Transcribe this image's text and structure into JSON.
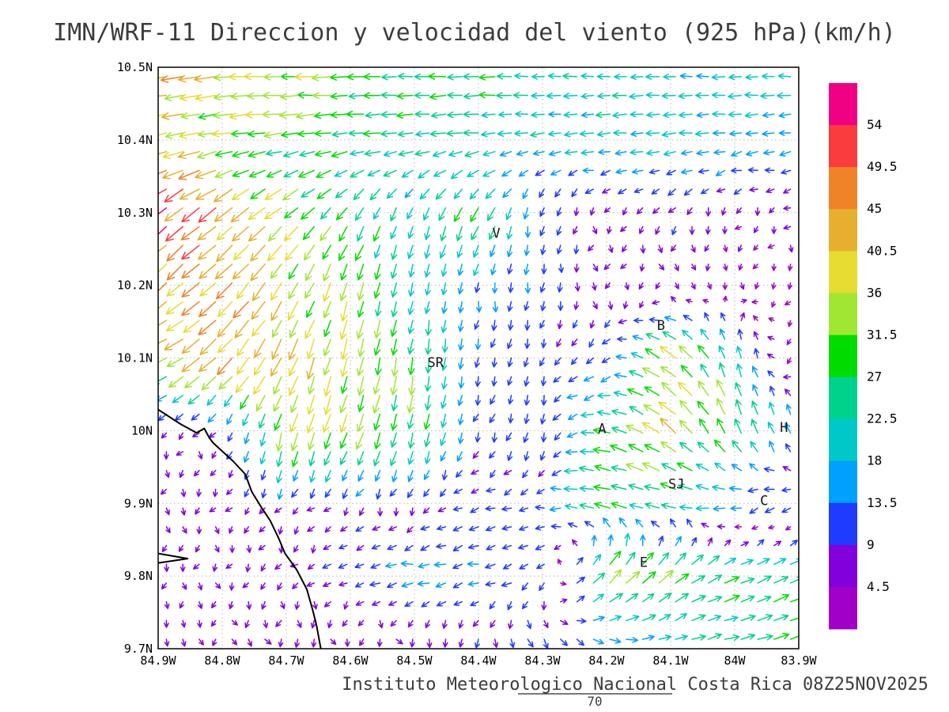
{
  "page": {
    "title": "IMN/WRF-11 Direccion y velocidad del viento (925 hPa)(km/h)",
    "footer": "Instituto Meteorologico Nacional Costa Rica 08Z25NOV2025"
  },
  "chart_data": {
    "type": "vector_field",
    "title": "IMN/WRF-11 Direccion y velocidad del viento (925 hPa)(km/h)",
    "units": "km/h",
    "x_axis": {
      "ticks": [
        "84.9W",
        "84.8W",
        "84.7W",
        "84.6W",
        "84.5W",
        "84.4W",
        "84.3W",
        "84.2W",
        "84.1W",
        "84W",
        "83.9W"
      ],
      "range_deg_lon": [
        -84.9,
        -83.9
      ],
      "grid_step_deg": 0.1
    },
    "y_axis": {
      "ticks": [
        "10.5N",
        "10.4N",
        "10.3N",
        "10.2N",
        "10.1N",
        "10N",
        "9.9N",
        "9.8N",
        "9.7N"
      ],
      "range_deg_lat": [
        9.7,
        10.5
      ],
      "grid_step_deg": 0.1
    },
    "grid_style": "dashed",
    "colorbar": {
      "unit": "km/h",
      "levels": [
        4.5,
        9,
        13.5,
        18,
        22.5,
        27,
        31.5,
        36,
        40.5,
        45,
        49.5,
        54
      ],
      "labels_top_to_bottom": [
        "54",
        "49.5",
        "45",
        "40.5",
        "36",
        "31.5",
        "27",
        "22.5",
        "18",
        "13.5",
        "9",
        "4.5"
      ],
      "colors_ascending": [
        "#a000c8",
        "#8200dc",
        "#1e3cff",
        "#00a0ff",
        "#00c8c8",
        "#00d28c",
        "#00dc00",
        "#a0e632",
        "#e6dc32",
        "#e6af2d",
        "#f08228",
        "#fa3c3c",
        "#f00082"
      ]
    },
    "wind_grid": {
      "comment_units": "u,v wind components in km/h on 0.1 deg grid, rows ordered north to south",
      "lons": [
        -84.9,
        -84.8,
        -84.7,
        -84.6,
        -84.5,
        -84.4,
        -84.3,
        -84.2,
        -84.1,
        -84.0,
        -83.9
      ],
      "lats": [
        10.5,
        10.4,
        10.3,
        10.2,
        10.1,
        10.0,
        9.9,
        9.8,
        9.7
      ],
      "u": [
        [
          -42,
          -38,
          -36,
          -30,
          -28,
          -28,
          -22,
          -20,
          -20,
          -20,
          -20
        ],
        [
          -38,
          -34,
          -30,
          -28,
          -24,
          -22,
          -20,
          -20,
          -20,
          -18,
          -18
        ],
        [
          -42,
          -36,
          -26,
          -14,
          -6,
          -12,
          -2,
          -2,
          -6,
          -4,
          -3
        ],
        [
          -30,
          -32,
          -20,
          -10,
          -4,
          -2,
          0,
          -2,
          2,
          3,
          -3
        ],
        [
          -34,
          -30,
          -18,
          -8,
          -4,
          -2,
          -4,
          -8,
          -30,
          -5,
          -4
        ],
        [
          -2,
          -3,
          -8,
          -12,
          -6,
          -4,
          -2,
          -26,
          -30,
          -12,
          -6
        ],
        [
          -1,
          -2,
          -3,
          -5,
          -4,
          -9,
          -11,
          -28,
          -26,
          -18,
          -10
        ],
        [
          0,
          -1,
          -2,
          -10,
          -17,
          -15,
          -8,
          24,
          26,
          24,
          22
        ],
        [
          1,
          2,
          1,
          2,
          5,
          2,
          8,
          14,
          16,
          24,
          28
        ]
      ],
      "v": [
        [
          -4,
          -2,
          0,
          0,
          0,
          0,
          0,
          0,
          0,
          0,
          0
        ],
        [
          -8,
          -6,
          -4,
          -3,
          -2,
          -2,
          -2,
          -2,
          -2,
          -2,
          -2
        ],
        [
          -34,
          -28,
          -22,
          -22,
          -20,
          -24,
          -12,
          -5,
          -8,
          -4,
          -4
        ],
        [
          -28,
          -30,
          -32,
          -32,
          -20,
          -14,
          -12,
          -6,
          -5,
          -4,
          -3
        ],
        [
          -14,
          -28,
          -38,
          -34,
          -30,
          -12,
          -9,
          -8,
          20,
          22,
          -6
        ],
        [
          -6,
          -7,
          -32,
          -30,
          -28,
          -10,
          -12,
          4,
          25,
          30,
          14
        ],
        [
          -6,
          -5,
          -7,
          -6,
          -6,
          -3,
          -2,
          6,
          4,
          -4,
          -8
        ],
        [
          -6,
          -6,
          -7,
          -4,
          -2,
          -3,
          -8,
          26,
          20,
          10,
          12
        ],
        [
          -5,
          -5,
          -8,
          -6,
          -8,
          -10,
          -10,
          -6,
          4,
          6,
          8
        ]
      ]
    },
    "stations": [
      {
        "label": "V",
        "lon": -84.372,
        "lat": 10.272
      },
      {
        "label": "SR",
        "lon": -84.467,
        "lat": 10.094
      },
      {
        "label": "B",
        "lon": -84.115,
        "lat": 10.145
      },
      {
        "label": "A",
        "lon": -84.207,
        "lat": 10.003
      },
      {
        "label": "SJ",
        "lon": -84.091,
        "lat": 9.927
      },
      {
        "label": "C",
        "lon": -83.954,
        "lat": 9.904
      },
      {
        "label": "E",
        "lon": -84.142,
        "lat": 9.819
      },
      {
        "label": "H",
        "lon": -83.923,
        "lat": 10.005
      }
    ],
    "coastline": [
      [
        [
          -84.9,
          10.029
        ],
        [
          -84.865,
          10.009
        ],
        [
          -84.84,
          9.997
        ],
        [
          -84.828,
          10.003
        ],
        [
          -84.82,
          9.99
        ],
        [
          -84.814,
          9.983
        ],
        [
          -84.783,
          9.958
        ],
        [
          -84.764,
          9.94
        ],
        [
          -84.754,
          9.916
        ],
        [
          -84.74,
          9.896
        ],
        [
          -84.725,
          9.876
        ],
        [
          -84.712,
          9.852
        ],
        [
          -84.702,
          9.831
        ],
        [
          -84.684,
          9.809
        ],
        [
          -84.668,
          9.782
        ],
        [
          -84.659,
          9.754
        ],
        [
          -84.653,
          9.733
        ],
        [
          -84.646,
          9.7
        ]
      ],
      [
        [
          -84.9,
          9.831
        ],
        [
          -84.854,
          9.824
        ],
        [
          -84.9,
          9.818
        ]
      ]
    ],
    "reference_vector": {
      "label": "70"
    }
  }
}
